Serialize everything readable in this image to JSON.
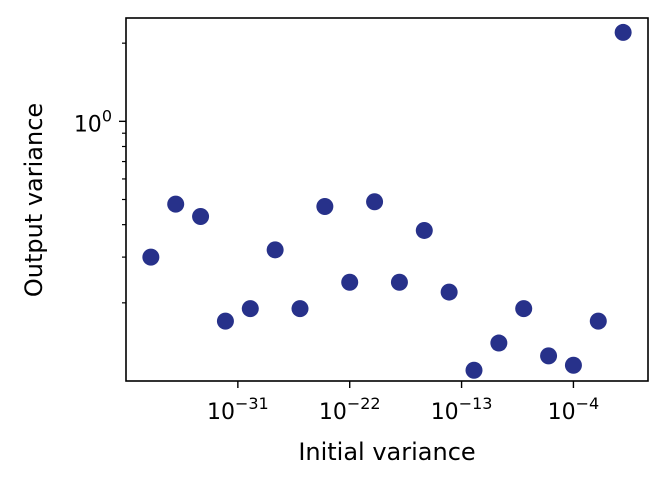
{
  "chart_data": {
    "type": "scatter",
    "xlabel": "Initial variance",
    "ylabel": "Output variance",
    "x_scale": "log",
    "y_scale": "log",
    "xlim": [
      1e-40,
      100.0
    ],
    "ylim": [
      0.1,
      2.5
    ],
    "x_ticks": [
      {
        "value": 1e-31,
        "base": "10",
        "exp": "−31"
      },
      {
        "value": 1e-22,
        "base": "10",
        "exp": "−22"
      },
      {
        "value": 1e-13,
        "base": "10",
        "exp": "−13"
      },
      {
        "value": 0.0001,
        "base": "10",
        "exp": "−4"
      }
    ],
    "y_ticks": [
      {
        "value": 1,
        "base": "10",
        "exp": "0"
      }
    ],
    "grid": false,
    "marker_color": "#27318a",
    "points": [
      {
        "x": 1e-38,
        "y": 0.3
      },
      {
        "x": 1e-36,
        "y": 0.48
      },
      {
        "x": 1e-34,
        "y": 0.43
      },
      {
        "x": 1e-32,
        "y": 0.17
      },
      {
        "x": 1e-30,
        "y": 0.19
      },
      {
        "x": 1e-28,
        "y": 0.32
      },
      {
        "x": 1e-26,
        "y": 0.19
      },
      {
        "x": 1e-24,
        "y": 0.47
      },
      {
        "x": 1e-22,
        "y": 0.24
      },
      {
        "x": 1e-20,
        "y": 0.49
      },
      {
        "x": 1e-18,
        "y": 0.24
      },
      {
        "x": 1e-16,
        "y": 0.38
      },
      {
        "x": 1e-14,
        "y": 0.22
      },
      {
        "x": 1e-12,
        "y": 0.11
      },
      {
        "x": 1e-10,
        "y": 0.14
      },
      {
        "x": 1e-08,
        "y": 0.19
      },
      {
        "x": 1e-06,
        "y": 0.125
      },
      {
        "x": 0.0001,
        "y": 0.115
      },
      {
        "x": 0.01,
        "y": 0.17
      },
      {
        "x": 1,
        "y": 2.2
      }
    ]
  }
}
